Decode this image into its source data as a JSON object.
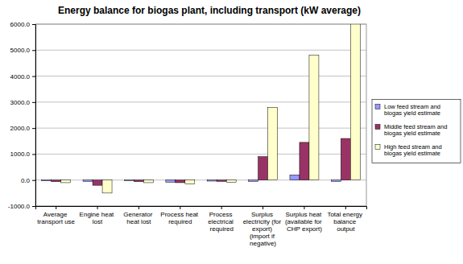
{
  "chart_data": {
    "type": "bar",
    "title": "Energy balance for biogas plant, including transport (kW average)",
    "categories": [
      "Average transport use",
      "Engine heat lost",
      "Generator heat lost",
      "Process heat required",
      "Process electrical required",
      "Surplus electricity (for export) (import if negative)",
      "Surplus heat (available for CHP export)",
      "Total energy balance output"
    ],
    "series": [
      {
        "name": "Low feed stream and biogas yield estimate",
        "color": "#9999ff",
        "values": [
          -30,
          -50,
          -20,
          -80,
          -40,
          -50,
          200,
          -50
        ]
      },
      {
        "name": "Middle feed stream and biogas yield estimate",
        "color": "#993366",
        "values": [
          -60,
          -200,
          -60,
          -100,
          -50,
          900,
          1450,
          1600
        ]
      },
      {
        "name": "High feed stream and biogas yield estimate",
        "color": "#ffffcc",
        "values": [
          -100,
          -500,
          -100,
          -150,
          -80,
          2800,
          4800,
          6000
        ]
      }
    ],
    "ylim": [
      -1000,
      6000
    ],
    "yticks": [
      {
        "value": -1000,
        "label": "-1000.0"
      },
      {
        "value": 0,
        "label": "0.0"
      },
      {
        "value": 1000,
        "label": "1000.0"
      },
      {
        "value": 2000,
        "label": "2000.0"
      },
      {
        "value": 3000,
        "label": "3000.0"
      },
      {
        "value": 4000,
        "label": "4000.0"
      },
      {
        "value": 5000,
        "label": "5000.0"
      },
      {
        "value": 6000,
        "label": "6000.0"
      }
    ],
    "grid": true,
    "legend": "right"
  }
}
